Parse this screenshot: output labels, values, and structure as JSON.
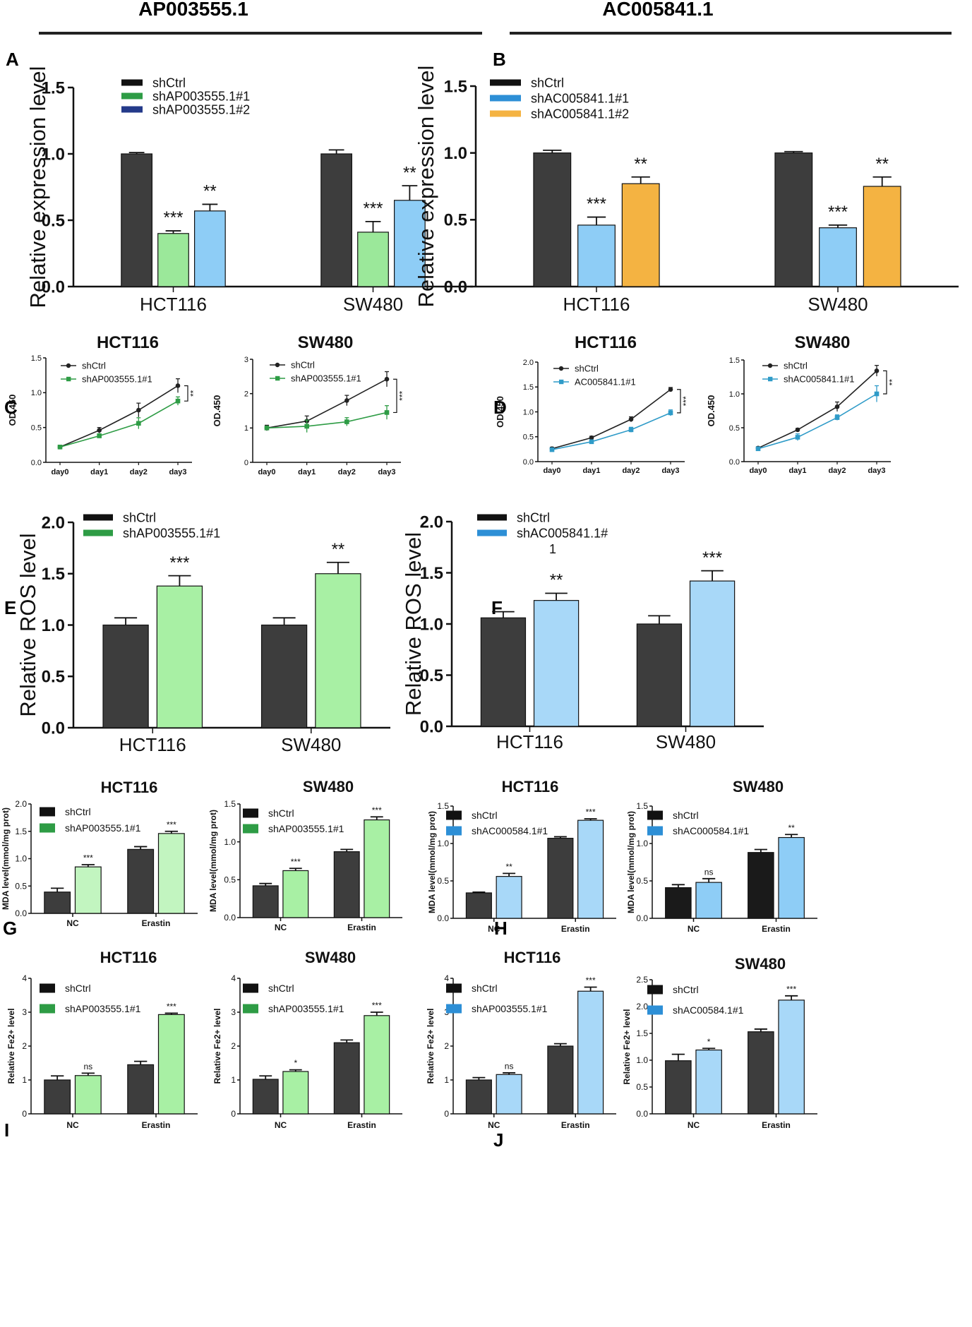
{
  "headers": [
    "AP003555.1",
    "AC005841.1"
  ],
  "chart_data": [
    {
      "panel": "A",
      "type": "bar",
      "ylabel": "Relative expression level",
      "ylim": [
        0,
        1.5
      ],
      "yticks": [
        0.0,
        0.5,
        1.0,
        1.5
      ],
      "tick_labels": [
        "0.0",
        "0.5",
        "1.0",
        "1.5"
      ],
      "categories": [
        "HCT116",
        "SW480"
      ],
      "series": [
        {
          "name": "shCtrl",
          "color": "#3d3d3d",
          "values": [
            1.0,
            1.0
          ],
          "errors": [
            0.01,
            0.03
          ],
          "sig": [
            "",
            ""
          ]
        },
        {
          "name": "shAP003555.1#1",
          "color": "#9be89a",
          "values": [
            0.4,
            0.41
          ],
          "errors": [
            0.02,
            0.08
          ],
          "sig": [
            "***",
            "***"
          ]
        },
        {
          "name": "shAP003555.1#2",
          "color": "#8ecdf6",
          "values": [
            0.57,
            0.65
          ],
          "errors": [
            0.05,
            0.11
          ],
          "sig": [
            "**",
            "**"
          ]
        }
      ],
      "legend_marks": [
        "#111111",
        "#2e9c45",
        "#243a8a"
      ]
    },
    {
      "panel": "B",
      "type": "bar",
      "ylabel": "Relative expression level",
      "ylim": [
        0,
        1.5
      ],
      "yticks": [
        0.0,
        0.5,
        1.0,
        1.5
      ],
      "tick_labels": [
        "0.0",
        "0.5",
        "1.0",
        "1.5"
      ],
      "categories": [
        "HCT116",
        "SW480"
      ],
      "series": [
        {
          "name": "shCtrl",
          "color": "#3d3d3d",
          "values": [
            1.0,
            1.0
          ],
          "errors": [
            0.02,
            0.01
          ],
          "sig": [
            "",
            ""
          ]
        },
        {
          "name": "shAC005841.1#1",
          "color": "#8ecdf6",
          "values": [
            0.46,
            0.44
          ],
          "errors": [
            0.06,
            0.02
          ],
          "sig": [
            "***",
            "***"
          ]
        },
        {
          "name": "shAC005841.1#2",
          "color": "#f4b342",
          "values": [
            0.77,
            0.75
          ],
          "errors": [
            0.05,
            0.07
          ],
          "sig": [
            "**",
            "**"
          ]
        }
      ],
      "legend_marks": [
        "#111111",
        "#2d8fd6",
        "#f4b342"
      ]
    },
    {
      "panel": "C",
      "title": "HCT116",
      "type": "line",
      "ylabel": "OD.450",
      "ylim": [
        0,
        1.5
      ],
      "yticks": [
        0.0,
        0.5,
        1.0,
        1.5
      ],
      "tick_labels": [
        "0.0",
        "0.5",
        "1.0",
        "1.5"
      ],
      "x": [
        "day0",
        "day1",
        "day2",
        "day3"
      ],
      "series": [
        {
          "name": "shCtrl",
          "color": "#222222",
          "values": [
            0.22,
            0.46,
            0.75,
            1.1
          ],
          "errors": [
            0.02,
            0.04,
            0.1,
            0.1
          ]
        },
        {
          "name": "shAP003555.1#1",
          "color": "#2e9c45",
          "values": [
            0.22,
            0.38,
            0.56,
            0.88
          ],
          "errors": [
            0.02,
            0.03,
            0.08,
            0.06
          ]
        }
      ],
      "sig": "**"
    },
    {
      "panel": "C2",
      "title": "SW480",
      "type": "line",
      "ylabel": "OD.450",
      "ylim": [
        0,
        3
      ],
      "yticks": [
        0,
        1,
        2,
        3
      ],
      "tick_labels": [
        "0",
        "1",
        "2",
        "3"
      ],
      "x": [
        "day0",
        "day1",
        "day2",
        "day3"
      ],
      "series": [
        {
          "name": "shCtrl",
          "color": "#222222",
          "values": [
            1.0,
            1.2,
            1.8,
            2.42
          ],
          "errors": [
            0.08,
            0.15,
            0.15,
            0.22
          ]
        },
        {
          "name": "shAP003555.1#1",
          "color": "#2e9c45",
          "values": [
            1.0,
            1.05,
            1.18,
            1.45
          ],
          "errors": [
            0.05,
            0.18,
            0.12,
            0.2
          ]
        }
      ],
      "sig": "***"
    },
    {
      "panel": "D",
      "title": "HCT116",
      "type": "line",
      "ylabel": "OD.450",
      "ylim": [
        0,
        2
      ],
      "yticks": [
        0.0,
        0.5,
        1.0,
        1.5,
        2.0
      ],
      "tick_labels": [
        "0.0",
        "0.5",
        "1.0",
        "1.5",
        "2.0"
      ],
      "x": [
        "day0",
        "day1",
        "day2",
        "day3"
      ],
      "series": [
        {
          "name": "shCtrl",
          "color": "#222222",
          "values": [
            0.26,
            0.48,
            0.85,
            1.45
          ],
          "errors": [
            0.03,
            0.03,
            0.05,
            0.04
          ]
        },
        {
          "name": "AC005841.1#1",
          "color": "#2f9bc8",
          "values": [
            0.24,
            0.4,
            0.64,
            0.98
          ],
          "errors": [
            0.02,
            0.03,
            0.05,
            0.06
          ]
        }
      ],
      "sig": "***"
    },
    {
      "panel": "D2",
      "title": "SW480",
      "type": "line",
      "ylabel": "OD.450",
      "ylim": [
        0,
        1.5
      ],
      "yticks": [
        0.0,
        0.5,
        1.0,
        1.5
      ],
      "tick_labels": [
        "0.0",
        "0.5",
        "1.0",
        "1.5"
      ],
      "x": [
        "day0",
        "day1",
        "day2",
        "day3"
      ],
      "series": [
        {
          "name": "shCtrl",
          "color": "#222222",
          "values": [
            0.2,
            0.47,
            0.81,
            1.34
          ],
          "errors": [
            0.02,
            0.02,
            0.07,
            0.08
          ]
        },
        {
          "name": "shAC005841.1#1",
          "color": "#2f9bc8",
          "values": [
            0.19,
            0.36,
            0.65,
            1.0
          ],
          "errors": [
            0.02,
            0.05,
            0.04,
            0.12
          ]
        }
      ],
      "sig": "**"
    },
    {
      "panel": "E",
      "type": "bar",
      "ylabel": "Relative ROS level",
      "ylim": [
        0,
        2.0
      ],
      "yticks": [
        0.0,
        0.5,
        1.0,
        1.5,
        2.0
      ],
      "tick_labels": [
        "0.0",
        "0.5",
        "1.0",
        "1.5",
        "2.0"
      ],
      "categories": [
        "HCT116",
        "SW480"
      ],
      "series": [
        {
          "name": "shCtrl",
          "color": "#3d3d3d",
          "values": [
            1.0,
            1.0
          ],
          "errors": [
            0.07,
            0.07
          ],
          "sig": [
            "",
            ""
          ]
        },
        {
          "name": "shAP003555.1#1",
          "color": "#a8f0a4",
          "values": [
            1.38,
            1.5
          ],
          "errors": [
            0.1,
            0.11
          ],
          "sig": [
            "***",
            "**"
          ]
        }
      ],
      "legend_marks": [
        "#111111",
        "#2e9c45"
      ]
    },
    {
      "panel": "F",
      "type": "bar",
      "ylabel": "Relative ROS level",
      "ylim": [
        0,
        2.0
      ],
      "yticks": [
        0.0,
        0.5,
        1.0,
        1.5,
        2.0
      ],
      "tick_labels": [
        "0.0",
        "0.5",
        "1.0",
        "1.5",
        "2.0"
      ],
      "categories": [
        "HCT116",
        "SW480"
      ],
      "series": [
        {
          "name": "shCtrl",
          "color": "#3d3d3d",
          "values": [
            1.06,
            1.0
          ],
          "errors": [
            0.06,
            0.08
          ],
          "sig": [
            "",
            ""
          ]
        },
        {
          "name": "shAC005841.1#",
          "name2": "1",
          "color": "#a8d8f8",
          "values": [
            1.23,
            1.42
          ],
          "errors": [
            0.07,
            0.1
          ],
          "sig": [
            "**",
            "***"
          ]
        }
      ],
      "legend_marks": [
        "#111111",
        "#2d8fd6"
      ]
    },
    {
      "panel": "G",
      "title": "HCT116",
      "type": "bar",
      "ylabel": "MDA level(mmol/mg prot)",
      "ylim": [
        0,
        2.0
      ],
      "yticks": [
        0.0,
        0.5,
        1.0,
        1.5,
        2.0
      ],
      "tick_labels": [
        "0.0",
        "0.5",
        "1.0",
        "1.5",
        "2.0"
      ],
      "categories": [
        "NC",
        "Erastin"
      ],
      "series": [
        {
          "name": "shCtrl",
          "color": "#3d3d3d",
          "values": [
            0.39,
            1.17
          ],
          "errors": [
            0.07,
            0.05
          ],
          "sig": [
            "",
            ""
          ]
        },
        {
          "name": "shAP003555.1#1",
          "color": "#c2f5c0",
          "values": [
            0.85,
            1.46
          ],
          "errors": [
            0.04,
            0.04
          ],
          "sig": [
            "***",
            "***"
          ]
        }
      ],
      "legend_marks": [
        "#111111",
        "#2e9c45"
      ]
    },
    {
      "panel": "G2",
      "title": "SW480",
      "type": "bar",
      "ylabel": "MDA level(mmol/mg prot)",
      "ylim": [
        0,
        1.5
      ],
      "yticks": [
        0.0,
        0.5,
        1.0,
        1.5
      ],
      "tick_labels": [
        "0.0",
        "0.5",
        "1.0",
        "1.5"
      ],
      "categories": [
        "NC",
        "Erastin"
      ],
      "series": [
        {
          "name": "shCtrl",
          "color": "#3d3d3d",
          "values": [
            0.42,
            0.87
          ],
          "errors": [
            0.03,
            0.03
          ],
          "sig": [
            "",
            ""
          ]
        },
        {
          "name": "shAP003555.1#1",
          "color": "#a8f0a4",
          "values": [
            0.62,
            1.29
          ],
          "errors": [
            0.03,
            0.04
          ],
          "sig": [
            "***",
            "***"
          ]
        }
      ],
      "legend_marks": [
        "#111111",
        "#2e9c45"
      ]
    },
    {
      "panel": "H",
      "title": "HCT116",
      "type": "bar",
      "ylabel": "MDA level(mmol/mg prot)",
      "ylim": [
        0,
        1.5
      ],
      "yticks": [
        0.0,
        0.5,
        1.0,
        1.5
      ],
      "tick_labels": [
        "0.0",
        "0.5",
        "1.0",
        "1.5"
      ],
      "categories": [
        "NC",
        "Erastin"
      ],
      "series": [
        {
          "name": "shCtrl",
          "color": "#3d3d3d",
          "values": [
            0.34,
            1.07
          ],
          "errors": [
            0.01,
            0.02
          ],
          "sig": [
            "",
            ""
          ]
        },
        {
          "name": "shAC000584.1#1",
          "color": "#a8d8f8",
          "values": [
            0.56,
            1.31
          ],
          "errors": [
            0.04,
            0.02
          ],
          "sig": [
            "**",
            "***"
          ]
        }
      ],
      "legend_marks": [
        "#111111",
        "#2d8fd6"
      ]
    },
    {
      "panel": "H2",
      "title": "SW480",
      "type": "bar",
      "ylabel": "MDA level(mmol/mg prot)",
      "ylim": [
        0,
        1.5
      ],
      "yticks": [
        0.0,
        0.5,
        1.0,
        1.5
      ],
      "tick_labels": [
        "0.0",
        "0.5",
        "1.0",
        "1.5"
      ],
      "categories": [
        "NC",
        "Erastin"
      ],
      "series": [
        {
          "name": "shCtrl",
          "color": "#1a1a1a",
          "values": [
            0.41,
            0.88
          ],
          "errors": [
            0.04,
            0.04
          ],
          "sig": [
            "",
            ""
          ]
        },
        {
          "name": "shAC000584.1#1",
          "color": "#8ecdf6",
          "values": [
            0.48,
            1.08
          ],
          "errors": [
            0.05,
            0.04
          ],
          "sig": [
            "ns",
            "**"
          ]
        }
      ],
      "legend_marks": [
        "#111111",
        "#2d8fd6"
      ]
    },
    {
      "panel": "I",
      "title": "HCT116",
      "type": "bar",
      "ylabel": "Relative Fe2+ level",
      "ylim": [
        0,
        4
      ],
      "yticks": [
        0,
        1,
        2,
        3,
        4
      ],
      "tick_labels": [
        "0",
        "1",
        "2",
        "3",
        "4"
      ],
      "categories": [
        "NC",
        "Erastin"
      ],
      "series": [
        {
          "name": "shCtrl",
          "color": "#3d3d3d",
          "values": [
            1.0,
            1.45
          ],
          "errors": [
            0.12,
            0.1
          ],
          "sig": [
            "",
            ""
          ]
        },
        {
          "name": "shAP003555.1#1",
          "color": "#a8f0a4",
          "values": [
            1.13,
            2.93
          ],
          "errors": [
            0.07,
            0.04
          ],
          "sig": [
            "ns",
            "***"
          ]
        }
      ],
      "legend_marks": [
        "#111111",
        "#2e9c45"
      ]
    },
    {
      "panel": "I2",
      "title": "SW480",
      "type": "bar",
      "ylabel": "Relative Fe2+ level",
      "ylim": [
        0,
        4
      ],
      "yticks": [
        0,
        1,
        2,
        3,
        4
      ],
      "tick_labels": [
        "0",
        "1",
        "2",
        "3",
        "4"
      ],
      "categories": [
        "NC",
        "Erastin"
      ],
      "series": [
        {
          "name": "shCtrl",
          "color": "#3d3d3d",
          "values": [
            1.02,
            2.1
          ],
          "errors": [
            0.1,
            0.08
          ],
          "sig": [
            "",
            ""
          ]
        },
        {
          "name": "shAP003555.1#1",
          "color": "#a8f0a4",
          "values": [
            1.25,
            2.9
          ],
          "errors": [
            0.05,
            0.1
          ],
          "sig": [
            "*",
            "***"
          ]
        }
      ],
      "legend_marks": [
        "#111111",
        "#2e9c45"
      ]
    },
    {
      "panel": "J",
      "title": "HCT116",
      "type": "bar",
      "ylabel": "Relative Fe2+ level",
      "ylim": [
        0,
        4
      ],
      "yticks": [
        0,
        1,
        2,
        3,
        4
      ],
      "tick_labels": [
        "0",
        "1",
        "2",
        "3",
        "4"
      ],
      "categories": [
        "NC",
        "Erastin"
      ],
      "series": [
        {
          "name": "shCtrl",
          "color": "#3d3d3d",
          "values": [
            1.0,
            2.0
          ],
          "errors": [
            0.07,
            0.07
          ],
          "sig": [
            "",
            ""
          ]
        },
        {
          "name": "shAP003555.1#1",
          "color": "#a8d8f8",
          "values": [
            1.16,
            3.62
          ],
          "errors": [
            0.05,
            0.12
          ],
          "sig": [
            "ns",
            "***"
          ]
        }
      ],
      "legend_marks": [
        "#111111",
        "#2d8fd6"
      ]
    },
    {
      "panel": "J2",
      "title": "SW480",
      "type": "bar",
      "ylabel": "Relative Fe2+ level",
      "ylim": [
        0,
        2.5
      ],
      "yticks": [
        0.0,
        0.5,
        1.0,
        1.5,
        2.0,
        2.5
      ],
      "tick_labels": [
        "0.0",
        "0.5",
        "1.0",
        "1.5",
        "2.0",
        "2.5"
      ],
      "categories": [
        "NC",
        "Erastin"
      ],
      "series": [
        {
          "name": "shCtrl",
          "color": "#3d3d3d",
          "values": [
            0.99,
            1.53
          ],
          "errors": [
            0.12,
            0.05
          ],
          "sig": [
            "",
            ""
          ]
        },
        {
          "name": "shAC00584.1#1",
          "color": "#a8d8f8",
          "values": [
            1.19,
            2.12
          ],
          "errors": [
            0.03,
            0.08
          ],
          "sig": [
            "*",
            "***"
          ]
        }
      ],
      "legend_marks": [
        "#111111",
        "#2d8fd6"
      ]
    }
  ]
}
